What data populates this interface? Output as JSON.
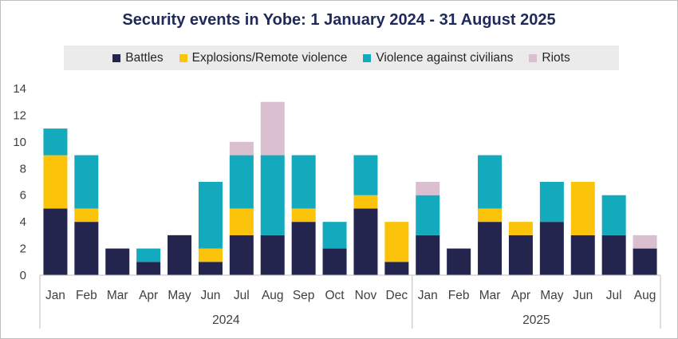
{
  "chart_data": {
    "type": "bar",
    "stacked": true,
    "title": "Security events in Yobe: 1 January 2024 - 31 August 2025",
    "categories": [
      "Jan",
      "Feb",
      "Mar",
      "Apr",
      "May",
      "Jun",
      "Jul",
      "Aug",
      "Sep",
      "Oct",
      "Nov",
      "Dec",
      "Jan",
      "Feb",
      "Mar",
      "Apr",
      "May",
      "Jun",
      "Jul",
      "Aug"
    ],
    "groups": [
      {
        "label": "2024",
        "count": 12
      },
      {
        "label": "2025",
        "count": 8
      }
    ],
    "ylim": [
      0,
      14
    ],
    "yticks": [
      "0",
      "2",
      "4",
      "6",
      "8",
      "10",
      "12",
      "14"
    ],
    "series": [
      {
        "name": "Battles",
        "color": "#23254e",
        "values": [
          5,
          4,
          2,
          1,
          3,
          1,
          3,
          3,
          4,
          2,
          5,
          1,
          3,
          2,
          4,
          3,
          4,
          3,
          3,
          2
        ]
      },
      {
        "name": "Explosions/Remote violence",
        "color": "#fcc30b",
        "values": [
          4,
          1,
          0,
          0,
          0,
          1,
          2,
          0,
          1,
          0,
          1,
          3,
          0,
          0,
          1,
          1,
          0,
          4,
          0,
          0
        ]
      },
      {
        "name": "Violence against civilians",
        "color": "#12aabc",
        "values": [
          2,
          4,
          0,
          1,
          0,
          5,
          4,
          6,
          4,
          2,
          3,
          0,
          3,
          0,
          4,
          0,
          3,
          0,
          3,
          0
        ]
      },
      {
        "name": "Riots",
        "color": "#d9bfd0",
        "values": [
          0,
          0,
          0,
          0,
          0,
          0,
          1,
          4,
          0,
          0,
          0,
          0,
          1,
          0,
          0,
          0,
          0,
          0,
          0,
          1
        ]
      }
    ]
  }
}
